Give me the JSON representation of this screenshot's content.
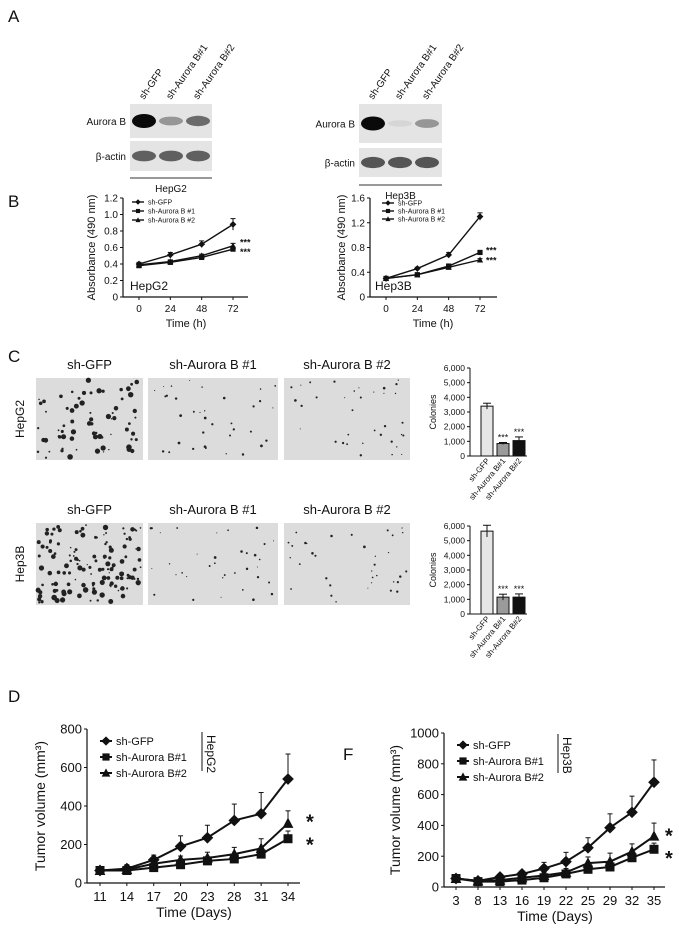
{
  "panel_letters": {
    "A": "A",
    "B": "B",
    "C": "C",
    "D": "D",
    "F": "F"
  },
  "western_blots": [
    {
      "cell_line": "HepG2",
      "lanes": [
        "sh-GFP",
        "sh-Aurora B#1",
        "sh-Aurora B#2"
      ],
      "rows": [
        "Aurora B",
        "β-actin"
      ],
      "band_intensity": {
        "Aurora B": [
          1.0,
          0.35,
          0.55
        ],
        "β-actin": [
          0.6,
          0.6,
          0.6
        ]
      }
    },
    {
      "cell_line": "Hep3B",
      "lanes": [
        "sh-GFP",
        "sh-Aurora B#1",
        "sh-Aurora B#2"
      ],
      "rows": [
        "Aurora B",
        "β-actin"
      ],
      "band_intensity": {
        "Aurora B": [
          1.0,
          0.05,
          0.35
        ],
        "β-actin": [
          0.65,
          0.65,
          0.65
        ]
      }
    }
  ],
  "colony_images": {
    "column_labels": [
      "sh-GFP",
      "sh-Aurora B #1",
      "sh-Aurora B #2"
    ],
    "row_labels": [
      "HepG2",
      "Hep3B"
    ]
  },
  "chart_data": [
    {
      "type": "line",
      "ylabel": "Absorbance (490 nm)",
      "xlabel": "Time (h)",
      "x": [
        0,
        24,
        48,
        72
      ],
      "ylim": [
        0,
        1.2
      ],
      "yticks": [
        0,
        0.2,
        0.4,
        0.6,
        0.8,
        1.0,
        1.2
      ],
      "ytick_labels": [
        "0",
        "0.2",
        "0.4",
        "0.6",
        "0.8",
        "1.0",
        "1.2"
      ],
      "annotation": "HepG2",
      "series": [
        {
          "name": "sh-GFP",
          "marker": "diamond",
          "values": [
            0.4,
            0.51,
            0.64,
            0.88
          ],
          "errors": [
            0.02,
            0.03,
            0.04,
            0.07
          ]
        },
        {
          "name": "sh-Aurora B #1",
          "marker": "square",
          "values": [
            0.38,
            0.42,
            0.48,
            0.58
          ],
          "errors": [
            0.01,
            0.02,
            0.02,
            0.02
          ]
        },
        {
          "name": "sh-Aurora B #2",
          "marker": "triangle",
          "values": [
            0.39,
            0.43,
            0.5,
            0.62
          ],
          "errors": [
            0.01,
            0.02,
            0.02,
            0.03
          ]
        }
      ],
      "significance": [
        "***",
        "***"
      ]
    },
    {
      "type": "line",
      "ylabel": "Absorbance (490 nm)",
      "xlabel": "Time (h)",
      "x": [
        0,
        24,
        48,
        72
      ],
      "ylim": [
        0,
        1.6
      ],
      "yticks": [
        0,
        0.4,
        0.8,
        1.2,
        1.6
      ],
      "ytick_labels": [
        "0",
        "0.4",
        "0.8",
        "1.2",
        "1.6"
      ],
      "annotation": "Hep3B",
      "series": [
        {
          "name": "sh-GFP",
          "marker": "diamond",
          "values": [
            0.3,
            0.46,
            0.68,
            1.3
          ],
          "errors": [
            0.01,
            0.02,
            0.04,
            0.06
          ]
        },
        {
          "name": "sh-Aurora B #1",
          "marker": "square",
          "values": [
            0.3,
            0.36,
            0.5,
            0.72
          ],
          "errors": [
            0.01,
            0.01,
            0.02,
            0.03
          ]
        },
        {
          "name": "sh-Aurora B #2",
          "marker": "triangle",
          "values": [
            0.3,
            0.36,
            0.48,
            0.6
          ],
          "errors": [
            0.01,
            0.01,
            0.02,
            0.02
          ]
        }
      ],
      "significance": [
        "***",
        "***"
      ]
    },
    {
      "type": "bar",
      "ylabel": "Colonies",
      "categories": [
        "sh-GFP",
        "sh-Aurora B#1",
        "sh-Aurora B#2"
      ],
      "ylim": [
        0,
        6000
      ],
      "yticks": [
        0,
        1000,
        2000,
        3000,
        4000,
        5000,
        6000
      ],
      "ytick_labels": [
        "0",
        "1,000",
        "2,000",
        "3,000",
        "4,000",
        "5,000",
        "6,000"
      ],
      "values": [
        3400,
        850,
        1050
      ],
      "errors": [
        200,
        70,
        250
      ],
      "colors": [
        "#e6e6e6",
        "#9a9a9a",
        "#111111"
      ],
      "significance": [
        "",
        "***",
        "***"
      ]
    },
    {
      "type": "bar",
      "ylabel": "Colonies",
      "categories": [
        "sh-GFP",
        "sh-Aurora B#1",
        "sh-Aurora B#2"
      ],
      "ylim": [
        0,
        6000
      ],
      "yticks": [
        0,
        1000,
        2000,
        3000,
        4000,
        5000,
        6000
      ],
      "ytick_labels": [
        "0",
        "1,000",
        "2,000",
        "3,000",
        "4,000",
        "5,000",
        "6,000"
      ],
      "values": [
        5650,
        1150,
        1150
      ],
      "errors": [
        400,
        200,
        220
      ],
      "colors": [
        "#e6e6e6",
        "#9a9a9a",
        "#111111"
      ],
      "significance": [
        "",
        "***",
        "***"
      ]
    },
    {
      "type": "line",
      "ylabel": "Tumor volume (mm³)",
      "xlabel": "Time (Days)",
      "x": [
        11,
        14,
        17,
        20,
        23,
        28,
        31,
        34
      ],
      "ylim": [
        0,
        800
      ],
      "yticks": [
        0,
        200,
        400,
        600,
        800
      ],
      "ytick_labels": [
        "0",
        "200",
        "400",
        "600",
        "800"
      ],
      "annotation": "HepG2",
      "series": [
        {
          "name": "sh-GFP",
          "marker": "diamond",
          "values": [
            65,
            75,
            120,
            190,
            235,
            325,
            360,
            540
          ],
          "errors": [
            10,
            20,
            25,
            55,
            65,
            85,
            110,
            130
          ]
        },
        {
          "name": "sh-Aurora B#1",
          "marker": "square",
          "values": [
            65,
            65,
            80,
            95,
            115,
            125,
            150,
            230
          ],
          "errors": [
            8,
            10,
            12,
            15,
            20,
            20,
            30,
            40
          ]
        },
        {
          "name": "sh-Aurora B#2",
          "marker": "triangle",
          "values": [
            65,
            70,
            100,
            120,
            130,
            150,
            180,
            310
          ],
          "errors": [
            8,
            12,
            15,
            20,
            30,
            35,
            50,
            65
          ]
        }
      ],
      "significance": [
        "*",
        "*"
      ]
    },
    {
      "type": "line",
      "ylabel": "Tumor volume (mm³)",
      "xlabel": "Time (Days)",
      "x": [
        3,
        8,
        13,
        16,
        19,
        22,
        25,
        29,
        32,
        35
      ],
      "ylim": [
        0,
        1000
      ],
      "yticks": [
        0,
        200,
        400,
        600,
        800,
        1000
      ],
      "ytick_labels": [
        "0",
        "200",
        "400",
        "600",
        "800",
        "1000"
      ],
      "annotation": "Hep3B",
      "series": [
        {
          "name": "sh-GFP",
          "marker": "diamond",
          "values": [
            55,
            40,
            65,
            85,
            120,
            165,
            255,
            385,
            485,
            680
          ],
          "errors": [
            10,
            10,
            15,
            20,
            40,
            60,
            65,
            90,
            105,
            145
          ]
        },
        {
          "name": "sh-Aurora B#1",
          "marker": "square",
          "values": [
            55,
            35,
            35,
            45,
            60,
            85,
            115,
            130,
            190,
            245
          ],
          "errors": [
            8,
            8,
            8,
            10,
            15,
            20,
            25,
            30,
            35,
            40
          ]
        },
        {
          "name": "sh-Aurora B#2",
          "marker": "triangle",
          "values": [
            55,
            40,
            45,
            60,
            75,
            95,
            155,
            165,
            230,
            330
          ],
          "errors": [
            8,
            8,
            10,
            12,
            18,
            25,
            40,
            55,
            50,
            85
          ]
        }
      ],
      "significance": [
        "*",
        "*"
      ]
    }
  ]
}
